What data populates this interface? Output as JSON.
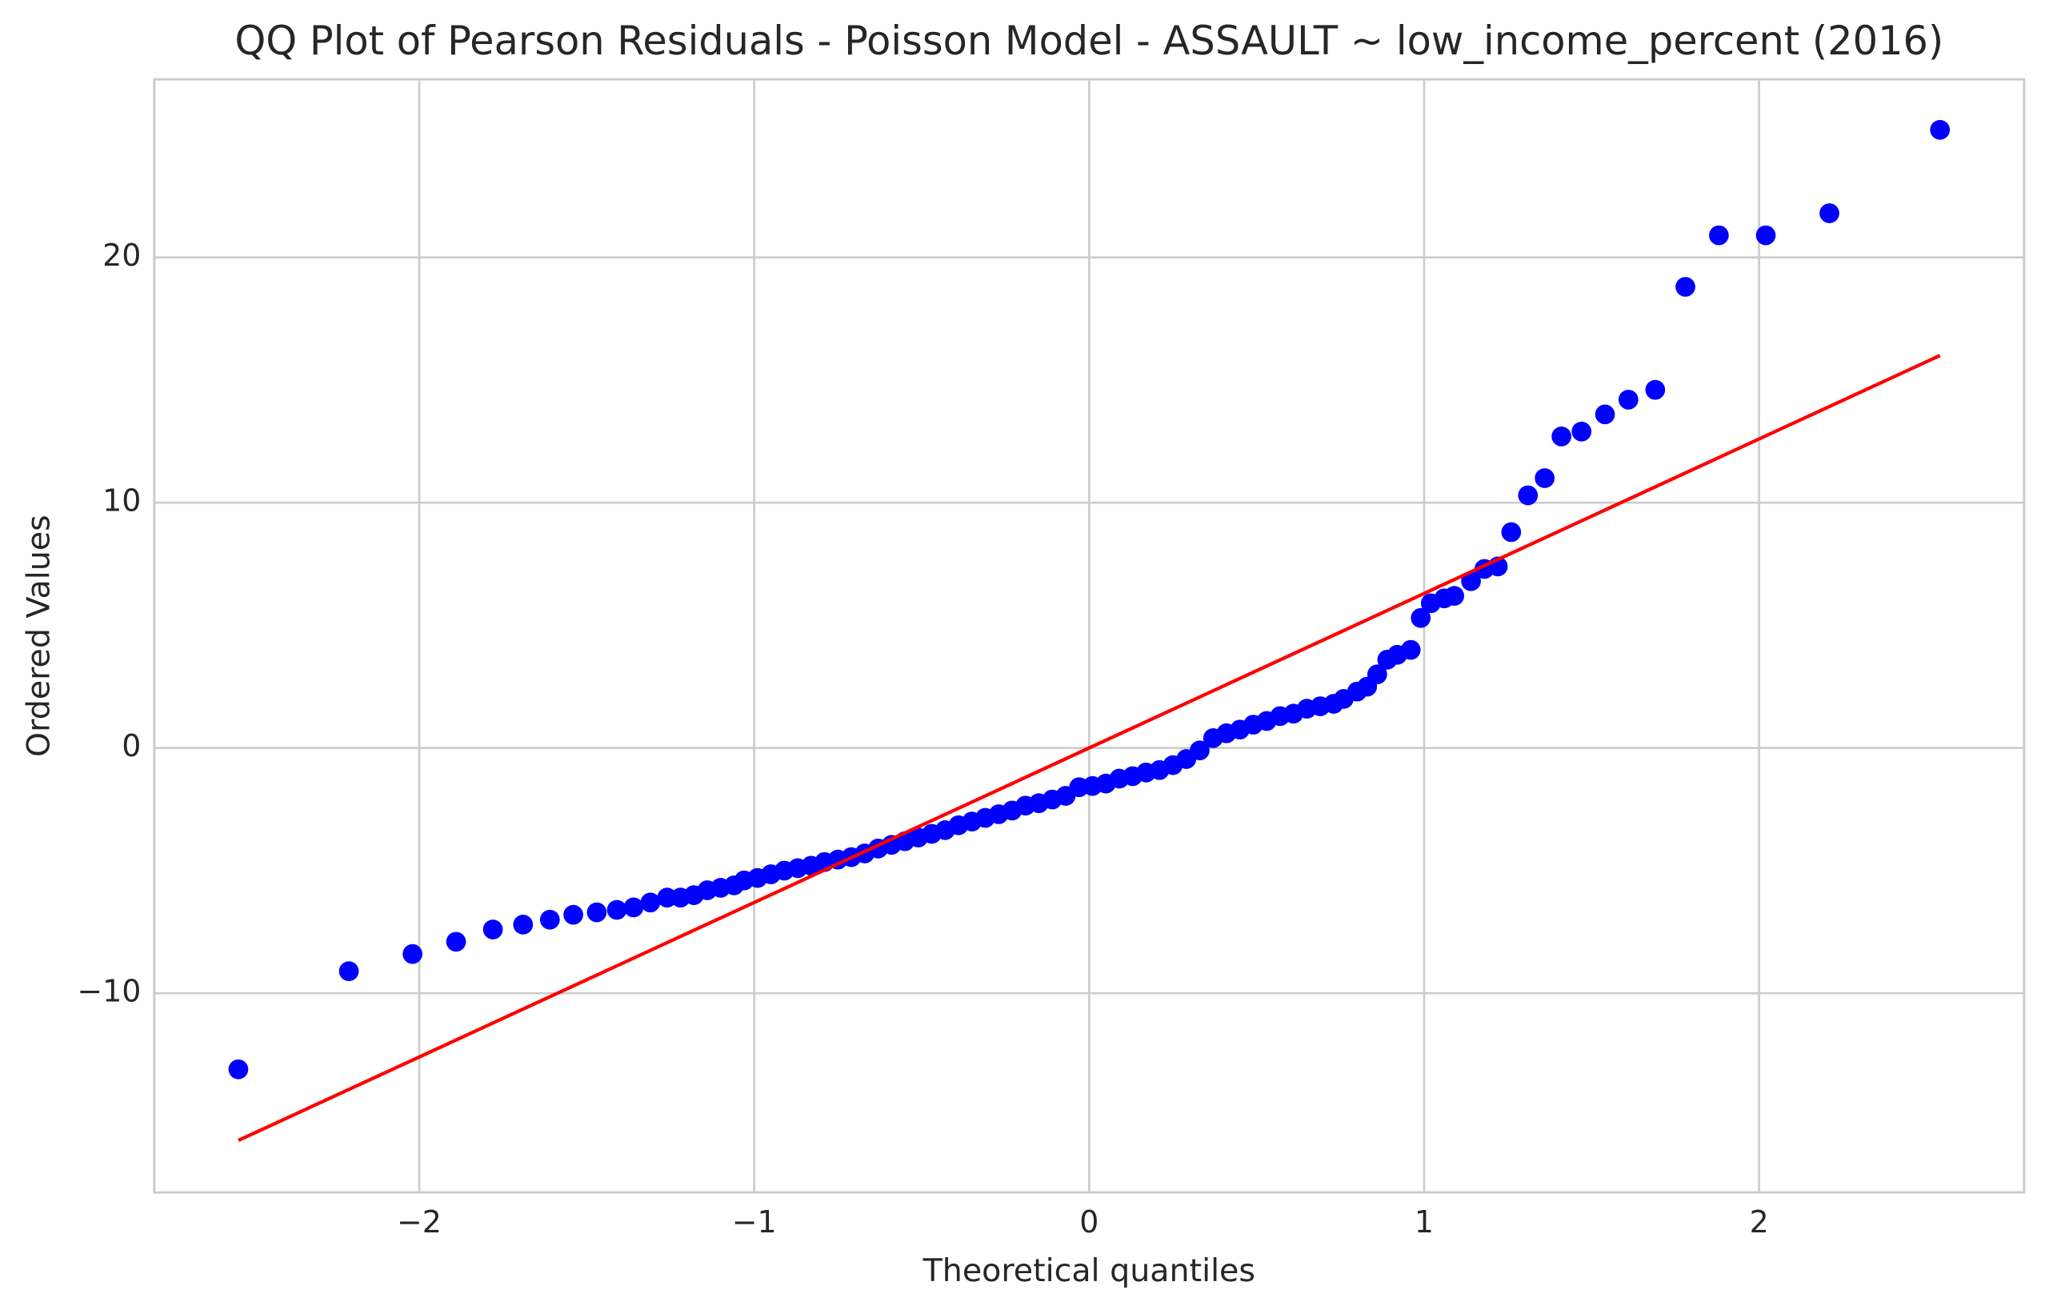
{
  "chart_data": {
    "type": "scatter",
    "title": "QQ Plot of Pearson Residuals - Poisson Model - ASSAULT ~ low_income_percent (2016)",
    "x_label": "Theoretical quantiles",
    "y_label": "Ordered Values",
    "grid": true,
    "xlim": [
      -2.791,
      2.791
    ],
    "ylim": [
      -18.12,
      27.26
    ],
    "xticks": [
      {
        "value": -2,
        "label": "−2"
      },
      {
        "value": -1,
        "label": "−1"
      },
      0,
      1,
      2
    ],
    "yticks": [
      {
        "value": -10,
        "label": "−10"
      },
      0,
      10,
      20
    ],
    "points": {
      "color": "#0000ff",
      "x": [
        -2.54,
        -2.21,
        -2.02,
        -1.89,
        -1.78,
        -1.69,
        -1.61,
        -1.54,
        -1.47,
        -1.41,
        -1.36,
        -1.31,
        -1.26,
        -1.22,
        -1.18,
        -1.14,
        -1.1,
        -1.06,
        -1.03,
        -0.99,
        -0.95,
        -0.91,
        -0.87,
        -0.83,
        -0.79,
        -0.75,
        -0.71,
        -0.67,
        -0.63,
        -0.59,
        -0.55,
        -0.51,
        -0.47,
        -0.43,
        -0.39,
        -0.35,
        -0.31,
        -0.27,
        -0.23,
        -0.19,
        -0.15,
        -0.11,
        -0.07,
        -0.03,
        0.01,
        0.05,
        0.09,
        0.13,
        0.17,
        0.21,
        0.25,
        0.29,
        0.33,
        0.37,
        0.41,
        0.45,
        0.49,
        0.53,
        0.57,
        0.61,
        0.65,
        0.69,
        0.73,
        0.76,
        0.8,
        0.83,
        0.86,
        0.89,
        0.92,
        0.96,
        0.99,
        1.02,
        1.06,
        1.09,
        1.14,
        1.18,
        1.22,
        1.26,
        1.31,
        1.36,
        1.41,
        1.47,
        1.54,
        1.61,
        1.69,
        1.78,
        1.88,
        2.02,
        2.21,
        2.54
      ],
      "y": [
        -13.1,
        -9.1,
        -8.4,
        -7.9,
        -7.4,
        -7.2,
        -7.0,
        -6.8,
        -6.7,
        -6.6,
        -6.5,
        -6.3,
        -6.1,
        -6.1,
        -6.0,
        -5.8,
        -5.7,
        -5.6,
        -5.4,
        -5.3,
        -5.15,
        -5.0,
        -4.9,
        -4.8,
        -4.65,
        -4.55,
        -4.45,
        -4.3,
        -4.1,
        -3.95,
        -3.8,
        -3.65,
        -3.5,
        -3.35,
        -3.15,
        -3.0,
        -2.85,
        -2.7,
        -2.55,
        -2.35,
        -2.25,
        -2.1,
        -1.95,
        -1.6,
        -1.55,
        -1.45,
        -1.25,
        -1.15,
        -1.0,
        -0.9,
        -0.7,
        -0.45,
        -0.1,
        0.4,
        0.6,
        0.75,
        0.95,
        1.1,
        1.3,
        1.4,
        1.6,
        1.7,
        1.8,
        2.0,
        2.3,
        2.5,
        3.0,
        3.6,
        3.8,
        4.0,
        5.3,
        5.9,
        6.1,
        6.2,
        6.8,
        7.3,
        7.4,
        8.8,
        10.3,
        11.0,
        12.7,
        12.9,
        13.6,
        14.2,
        14.6,
        18.8,
        20.9,
        20.9,
        21.8,
        25.2
      ]
    },
    "fit_line": {
      "color": "#ff0000",
      "x": [
        -2.54,
        2.54
      ],
      "y": [
        -16.0,
        16.0
      ]
    }
  }
}
